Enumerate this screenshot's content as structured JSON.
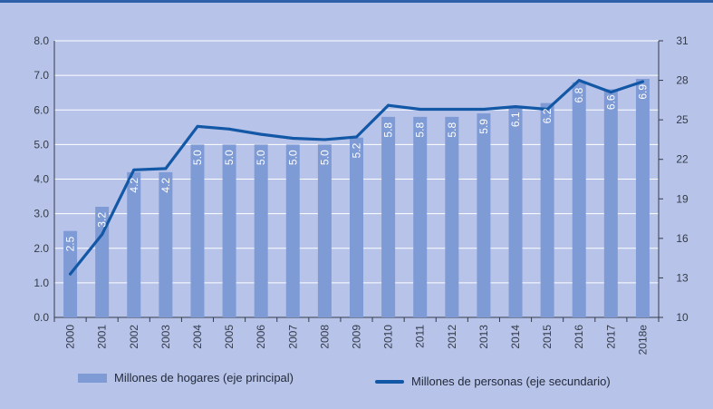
{
  "chart_data": {
    "type": "bar+line",
    "categories": [
      "2000",
      "2001",
      "2002",
      "2003",
      "2004",
      "2005",
      "2006",
      "2007",
      "2008",
      "2009",
      "2010",
      "2011",
      "2012",
      "2013",
      "2014",
      "2015",
      "2016",
      "2017",
      "2018e"
    ],
    "series": [
      {
        "name": "Millones de hogares (eje principal)",
        "type": "bar",
        "axis": "primary",
        "values": [
          2.5,
          3.2,
          4.2,
          4.2,
          5.0,
          5.0,
          5.0,
          5.0,
          5.0,
          5.2,
          5.8,
          5.8,
          5.8,
          5.9,
          6.1,
          6.2,
          6.8,
          6.6,
          6.9
        ],
        "color": "#7f9bd6"
      },
      {
        "name": "Millones de personas (eje secundario)",
        "type": "line",
        "axis": "secondary",
        "values": [
          13.3,
          16.3,
          21.2,
          21.3,
          24.5,
          24.3,
          23.9,
          23.6,
          23.5,
          23.7,
          26.1,
          25.8,
          25.8,
          25.8,
          26.0,
          25.8,
          28.0,
          27.1,
          27.9
        ],
        "color": "#1358a6"
      }
    ],
    "y_primary": {
      "ylim": [
        0,
        8
      ],
      "ticks": [
        "0.0",
        "1.0",
        "2.0",
        "3.0",
        "4.0",
        "5.0",
        "6.0",
        "7.0",
        "8.0"
      ]
    },
    "y_secondary": {
      "ylim": [
        10,
        31
      ],
      "ticks": [
        "10",
        "13",
        "16",
        "19",
        "22",
        "25",
        "28",
        "31"
      ]
    },
    "grid": true,
    "legend": "bottom",
    "data_labels": [
      "2.5",
      "3.2",
      "4.2",
      "4.2",
      "5.0",
      "5.0",
      "5.0",
      "5.0",
      "5.0",
      "5.2",
      "5.8",
      "5.8",
      "5.8",
      "5.9",
      "6.1",
      "6.2",
      "6.8",
      "6.6",
      "6.9"
    ]
  }
}
